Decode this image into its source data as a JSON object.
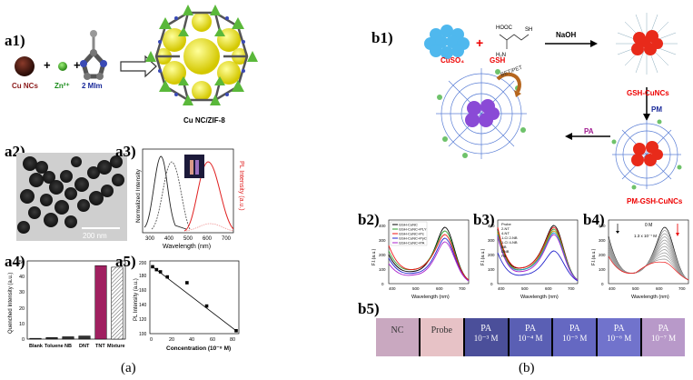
{
  "a1": {
    "label": "a1)",
    "cu_ncs": "Cu NCs",
    "zn": "Zn²⁺",
    "mim": "2 MIm",
    "product": "Cu NC/ZIF-8",
    "plus": "+"
  },
  "a2": {
    "label": "a2)",
    "scale": "200 nm"
  },
  "a3": {
    "label": "a3)",
    "ylabel": "Normalized Intensity",
    "y2label": "PL Intensity (a.u.)",
    "xlabel": "Wavelength (nm)",
    "xticks": [
      "300",
      "400",
      "500",
      "600",
      "700"
    ]
  },
  "a4": {
    "label": "a4)",
    "ylabel": "Quenched Intensity (a.u.)",
    "categories": [
      "Blank",
      "Toluene",
      "NB",
      "DNT",
      "TNT",
      "Mixture"
    ],
    "yticks": [
      "0",
      "10",
      "20",
      "30",
      "40",
      "50"
    ]
  },
  "a5": {
    "label": "a5)",
    "ylabel": "PL Intensity (a.u.)",
    "xlabel": "Concentration (10⁻⁸ M)",
    "xticks": [
      "0",
      "20",
      "40",
      "60",
      "80"
    ],
    "yticks": [
      "100",
      "120",
      "140",
      "160",
      "180",
      "200"
    ]
  },
  "b1": {
    "label": "b1)",
    "cuso4": "CuSO₄",
    "gsh": "GSH",
    "naoh": "NaOH",
    "gsh_cuncs": "GSH-CuNCs",
    "pm": "PM",
    "pm_gsh": "PM-GSH-CuNCs",
    "pa": "PA",
    "bet": "BET/PET",
    "plus": "+",
    "hooc": "HOOC",
    "h2n": "H₂N",
    "sh": "SH"
  },
  "b2": {
    "label": "b2)",
    "ylabel": "F.I.(a.u.)",
    "xlabel": "Wavelength (nm)",
    "legend": [
      "GSH-CuNC",
      "GSH-CuNC+PLY",
      "GSH-CuNC+Pc",
      "GSH-CuNC+PyC",
      "GSH-CuNC+PA"
    ],
    "xticks": [
      "400",
      "500",
      "600",
      "700"
    ],
    "yticks": [
      "0",
      "100",
      "200",
      "300",
      "400"
    ]
  },
  "b3": {
    "label": "b3)",
    "ylabel": "F.I.(a.u.)",
    "xlabel": "Wavelength (nm)",
    "legend": [
      "Probe",
      "2-NT",
      "4-NT",
      "1-Cl 2-NB",
      "1-Cl 4-NB",
      "NB",
      "DNB",
      "PA"
    ],
    "xticks": [
      "400",
      "500",
      "600",
      "700"
    ],
    "yticks": [
      "0",
      "100",
      "200",
      "300",
      "400"
    ]
  },
  "b4": {
    "label": "b4)",
    "ylabel": "F.I.(a.u.)",
    "xlabel": "Wavelength (nm)",
    "ann1": "0 M",
    "ann2": "1.3 x 10⁻⁷ M",
    "xticks": [
      "400",
      "500",
      "600",
      "700"
    ],
    "yticks": [
      "0",
      "100",
      "200",
      "300",
      "400"
    ]
  },
  "b5": {
    "label": "b5)",
    "swatches": [
      {
        "l1": "NC",
        "l2": "",
        "color": "#c9a8c0"
      },
      {
        "l1": "Probe",
        "l2": "",
        "color": "#e7c2c6"
      },
      {
        "l1": "PA",
        "l2": "10⁻³ M",
        "color": "#4b4f9a"
      },
      {
        "l1": "PA",
        "l2": "10⁻⁴ M",
        "color": "#5a5fb4"
      },
      {
        "l1": "PA",
        "l2": "10⁻⁵ M",
        "color": "#6568c2"
      },
      {
        "l1": "PA",
        "l2": "10⁻⁶ M",
        "color": "#7173cc"
      },
      {
        "l1": "PA",
        "l2": "10⁻⁷ M",
        "color": "#b899c9"
      }
    ]
  },
  "captions": {
    "a": "(a)",
    "b": "(b)"
  },
  "chart_data": [
    {
      "type": "bar",
      "categories": [
        "Blank",
        "Toluene",
        "NB",
        "DNT",
        "TNT",
        "Mixture"
      ],
      "values": [
        0.5,
        1,
        1.5,
        2,
        47,
        46
      ],
      "ylabel": "Quenched Intensity (a.u.)",
      "ylim": [
        0,
        50
      ]
    },
    {
      "type": "scatter",
      "x": [
        0,
        4,
        8,
        15,
        35,
        55,
        85
      ],
      "y": [
        192,
        188,
        185,
        178,
        170,
        138,
        104
      ],
      "xlabel": "Concentration (10⁻⁸ M)",
      "ylabel": "PL Intensity (a.u.)",
      "xlim": [
        0,
        85
      ],
      "ylim": [
        100,
        200
      ]
    }
  ]
}
